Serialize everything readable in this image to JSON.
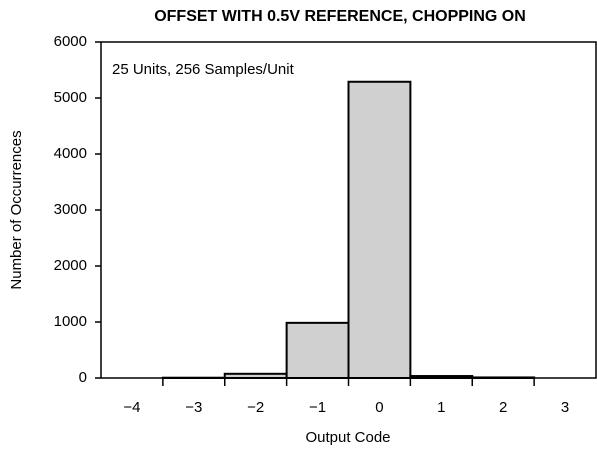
{
  "chart_data": {
    "type": "bar",
    "title": "OFFSET WITH 0.5V REFERENCE, CHOPPING ON",
    "annotation": "25 Units, 256 Samples/Unit",
    "x_label": "Output Code",
    "y_label": "Number of Occurrences",
    "categories": [
      "−4",
      "−3",
      "−2",
      "−1",
      "0",
      "1",
      "2",
      "3"
    ],
    "values": [
      0,
      5,
      75,
      985,
      5290,
      35,
      10,
      0
    ],
    "color": "#d0d0d0",
    "ylim": [
      0,
      6000
    ],
    "yticks": [
      0,
      1000,
      2000,
      3000,
      4000,
      5000,
      6000
    ],
    "grid": false
  }
}
